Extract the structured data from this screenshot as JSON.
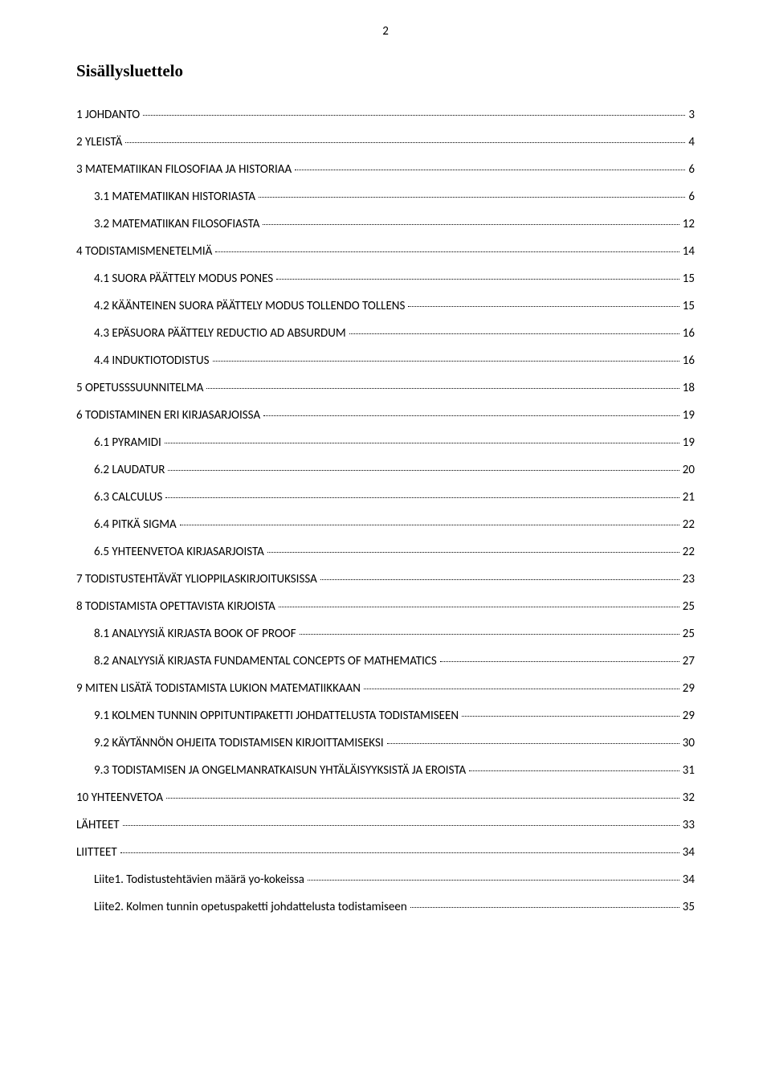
{
  "page_number": "2",
  "title": "Sisällysluettelo",
  "font": {
    "title_family": "Times New Roman",
    "title_size_pt": 16,
    "body_family": "Calibri",
    "body_size_pt": 11
  },
  "colors": {
    "text": "#000000",
    "background": "#ffffff"
  },
  "entries": [
    {
      "level": 1,
      "label": "1 JOHDANTO",
      "page": "3"
    },
    {
      "level": 1,
      "label": "2 YLEISTÄ",
      "page": "4"
    },
    {
      "level": 1,
      "label": "3 MATEMATIIKAN FILOSOFIAA JA HISTORIAA",
      "page": "6"
    },
    {
      "level": 2,
      "label": "3.1 MATEMATIIKAN HISTORIASTA",
      "page": "6"
    },
    {
      "level": 2,
      "label": "3.2 MATEMATIIKAN FILOSOFIASTA",
      "page": "12"
    },
    {
      "level": 1,
      "label": "4 TODISTAMISMENETELMIÄ",
      "page": "14"
    },
    {
      "level": 2,
      "label": "4.1 SUORA PÄÄTTELY MODUS PONES",
      "page": "15"
    },
    {
      "level": 2,
      "label": "4.2 KÄÄNTEINEN SUORA PÄÄTTELY MODUS TOLLENDO TOLLENS",
      "page": "15"
    },
    {
      "level": 2,
      "label": "4.3 EPÄSUORA PÄÄTTELY REDUCTIO AD ABSURDUM",
      "page": "16"
    },
    {
      "level": 2,
      "label": "4.4 INDUKTIOTODISTUS",
      "page": "16"
    },
    {
      "level": 1,
      "label": "5 OPETUSSSUUNNITELMA",
      "page": "18"
    },
    {
      "level": 1,
      "label": "6 TODISTAMINEN ERI KIRJASARJOISSA",
      "page": "19"
    },
    {
      "level": 2,
      "label": "6.1 PYRAMIDI",
      "page": "19"
    },
    {
      "level": 2,
      "label": "6.2 LAUDATUR",
      "page": "20"
    },
    {
      "level": 2,
      "label": "6.3 CALCULUS",
      "page": "21"
    },
    {
      "level": 2,
      "label": "6.4 PITKÄ SIGMA",
      "page": "22"
    },
    {
      "level": 2,
      "label": "6.5 YHTEENVETOA KIRJASARJOISTA",
      "page": "22"
    },
    {
      "level": 1,
      "label": "7 TODISTUSTEHTÄVÄT YLIOPPILASKIRJOITUKSISSA",
      "page": "23"
    },
    {
      "level": 1,
      "label": "8 TODISTAMISTA OPETTAVISTA KIRJOISTA",
      "page": "25"
    },
    {
      "level": 2,
      "label": "8.1 ANALYYSIÄ KIRJASTA BOOK OF PROOF",
      "page": "25"
    },
    {
      "level": 2,
      "label": "8.2 ANALYYSIÄ KIRJASTA FUNDAMENTAL CONCEPTS OF MATHEMATICS",
      "page": "27"
    },
    {
      "level": 1,
      "label": "9 MITEN LISÄTÄ TODISTAMISTA LUKION MATEMATIIKKAAN",
      "page": "29"
    },
    {
      "level": 2,
      "label": "9.1 KOLMEN TUNNIN OPPITUNTIPAKETTI JOHDATTELUSTA TODISTAMISEEN",
      "page": "29"
    },
    {
      "level": 2,
      "label": "9.2 KÄYTÄNNÖN OHJEITA TODISTAMISEN KIRJOITTAMISEKSI",
      "page": "30"
    },
    {
      "level": 2,
      "label": "9.3 TODISTAMISEN JA ONGELMANRATKAISUN YHTÄLÄISYYKSISTÄ JA EROISTA",
      "page": "31"
    },
    {
      "level": 1,
      "label": "10 YHTEENVETOA",
      "page": "32"
    },
    {
      "level": 1,
      "label": "LÄHTEET",
      "page": "33"
    },
    {
      "level": 1,
      "label": "LIITTEET",
      "page": "34"
    },
    {
      "level": 2,
      "label": "Liite1. Todistustehtävien määrä yo-kokeissa",
      "page": "34"
    },
    {
      "level": 2,
      "label": "Liite2. Kolmen tunnin opetuspaketti johdattelusta todistamiseen",
      "page": "35"
    }
  ]
}
